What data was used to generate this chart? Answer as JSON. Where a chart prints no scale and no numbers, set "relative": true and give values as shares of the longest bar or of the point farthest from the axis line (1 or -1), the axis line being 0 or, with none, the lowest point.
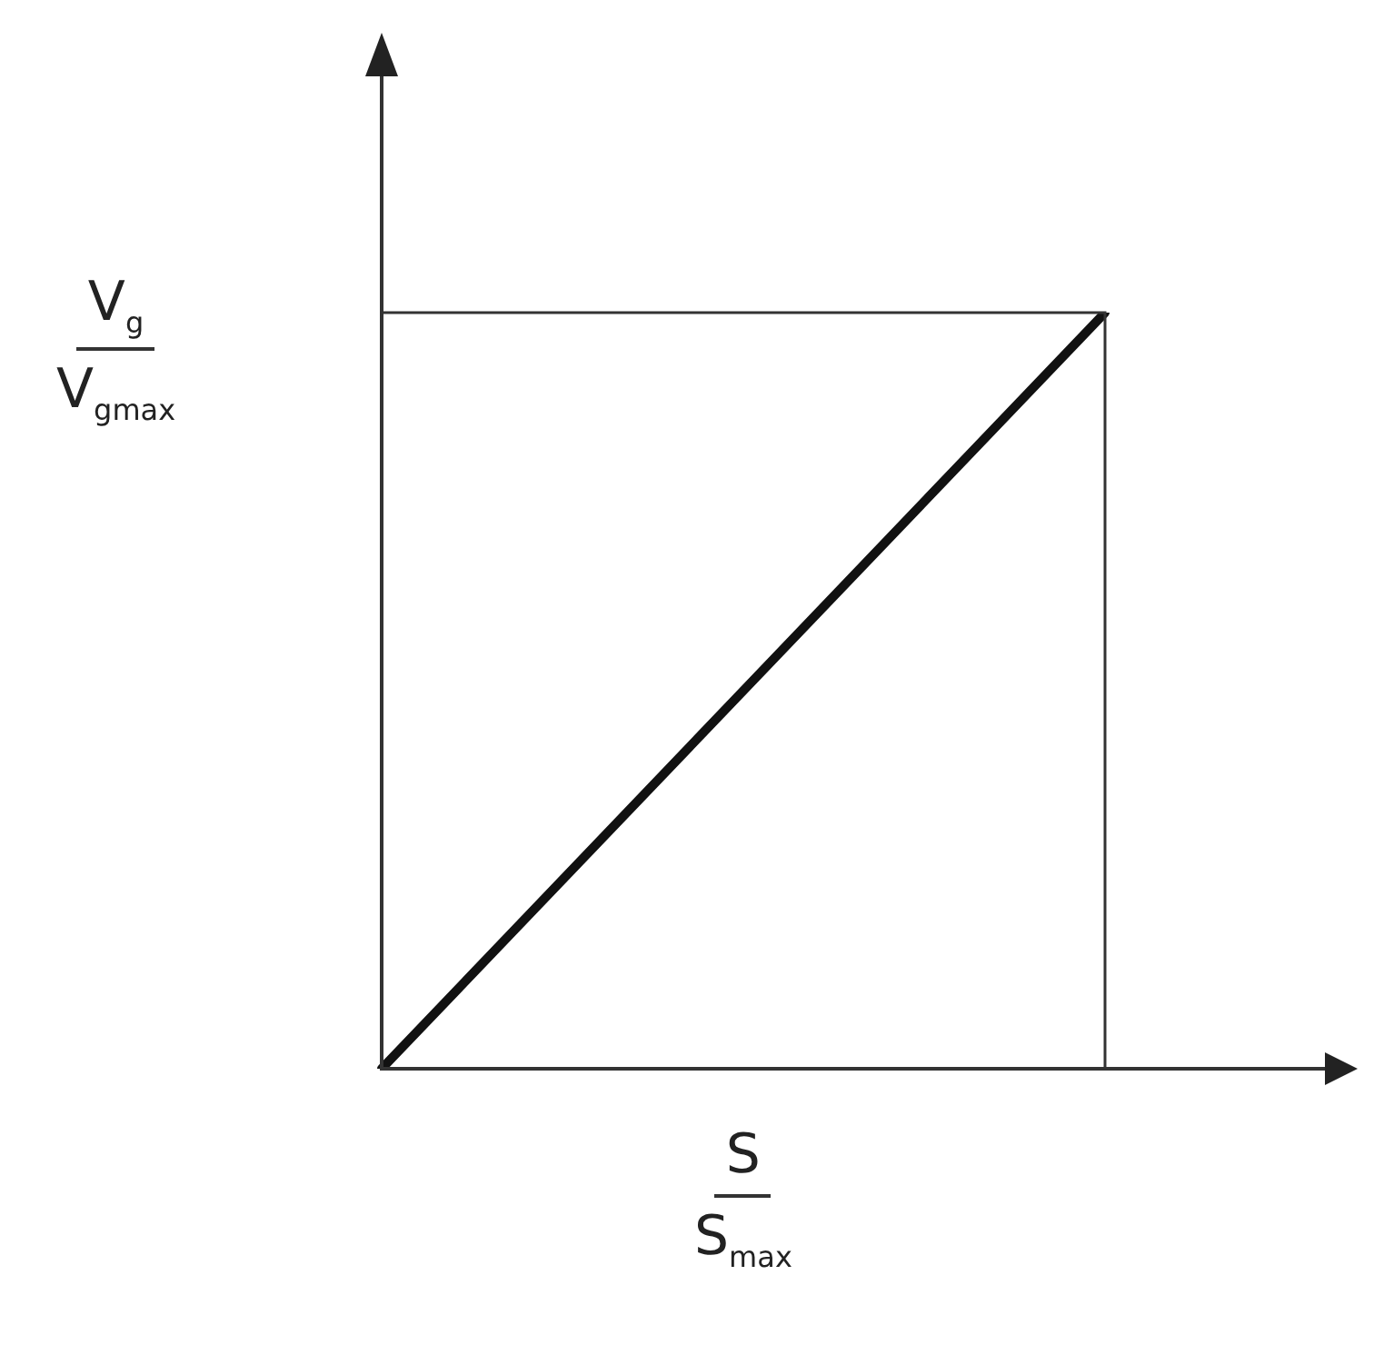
{
  "chart_data": {
    "type": "line",
    "relative": true,
    "xlabel": "S\nS$_{max}$",
    "ylabel": "V$_{g}$\nV$_{gmax}$",
    "categories": [
      null,
      null
    ],
    "series": [
      {
        "color": "#111111",
        "values": [
          0,
          1
        ]
      }
    ],
    "legend": false,
    "marker": "none",
    "line_style": "solid"
  }
}
